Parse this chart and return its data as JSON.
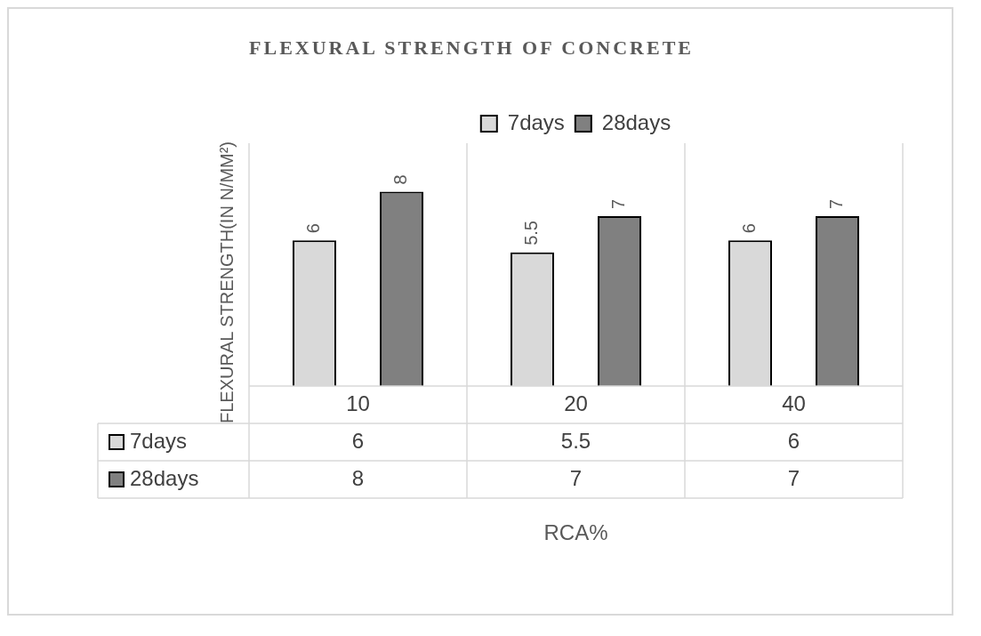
{
  "chart_data": {
    "type": "bar",
    "title": "FLEXURAL STRENGTH OF CONCRETE",
    "xlabel": "RCA%",
    "ylabel": "FLEXURAL STRENGTH(IN N/MM²)",
    "categories": [
      "10",
      "20",
      "40"
    ],
    "series": [
      {
        "name": "7days",
        "color": "#d9d9d9",
        "values": [
          6,
          5.5,
          6
        ]
      },
      {
        "name": "28days",
        "color": "#808080",
        "values": [
          8,
          7,
          7
        ]
      }
    ],
    "annotations": [
      "6",
      "5.5",
      "6",
      "8",
      "7",
      "7"
    ],
    "ylim": [
      0,
      10
    ],
    "data_labels": true,
    "legend": "top"
  }
}
